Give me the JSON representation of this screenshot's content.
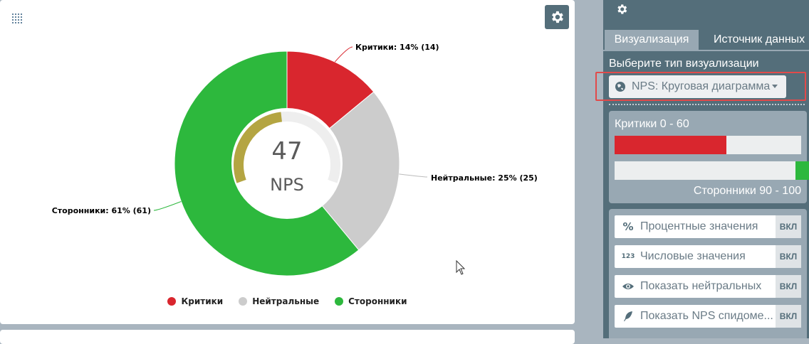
{
  "main": {
    "center": {
      "value": "47",
      "label": "NPS"
    }
  },
  "chart_data": {
    "type": "pie",
    "slices": [
      {
        "name": "Критики",
        "value": 14,
        "label": "Критики: 14% (14)",
        "color": "#d9262e"
      },
      {
        "name": "Нейтральные",
        "value": 25,
        "label": "Нейтральные: 25% (25)",
        "color": "#cccccc"
      },
      {
        "name": "Сторонники",
        "value": 61,
        "label": "Сторонники: 61% (61)",
        "color": "#2db83d"
      }
    ],
    "legend": [
      "Критики",
      "Нейтральные",
      "Сторонники"
    ],
    "legend_position": "bottom",
    "gauge_color": "#b4a542",
    "gauge_track_color": "#eeeeee"
  },
  "panel": {
    "tabs": [
      {
        "label": "Визуализация",
        "active": true
      },
      {
        "label": "Источник данных",
        "active": false
      }
    ],
    "select_label": "Выберите тип визуализации",
    "select_value": "NPS: Круговая диаграмма",
    "ranges": {
      "critics_label": "Критики 0 - 60",
      "critics_value": 0.6,
      "promoters_label": "Сторонники 90 - 100",
      "promoters_value": 0.9
    },
    "toggles": [
      {
        "icon": "%",
        "label": "Процентные значения",
        "state": "ВКЛ"
      },
      {
        "icon": "123",
        "label": "Числовые значения",
        "state": "ВКЛ"
      },
      {
        "icon": "eye",
        "label": "Показать нейтральных",
        "state": "ВКЛ"
      },
      {
        "icon": "feather",
        "label": "Показать NPS спидоме...",
        "state": "ВКЛ"
      }
    ]
  },
  "colors": {
    "panel_bg": "#546e7a",
    "panel_section": "#98a8b3",
    "critics": "#d9262e",
    "promoters": "#2db83d"
  }
}
